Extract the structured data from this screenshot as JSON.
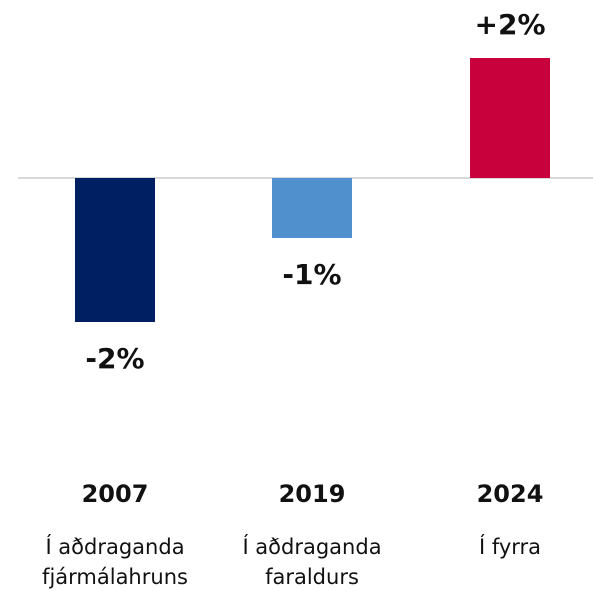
{
  "chart_data": {
    "type": "bar",
    "categories": [
      "2007",
      "2019",
      "2024"
    ],
    "subtitles": [
      "Í aðdraganda fjármálahruns",
      "Í aðdraganda faraldurs",
      "Í fyrra"
    ],
    "values": [
      -2.4,
      -1,
      2
    ],
    "value_labels": [
      "-2%",
      "-1%",
      "+2%"
    ],
    "colors": [
      "#001e62",
      "#4f90cd",
      "#c8003c"
    ],
    "ylim": [
      -3,
      2
    ]
  }
}
